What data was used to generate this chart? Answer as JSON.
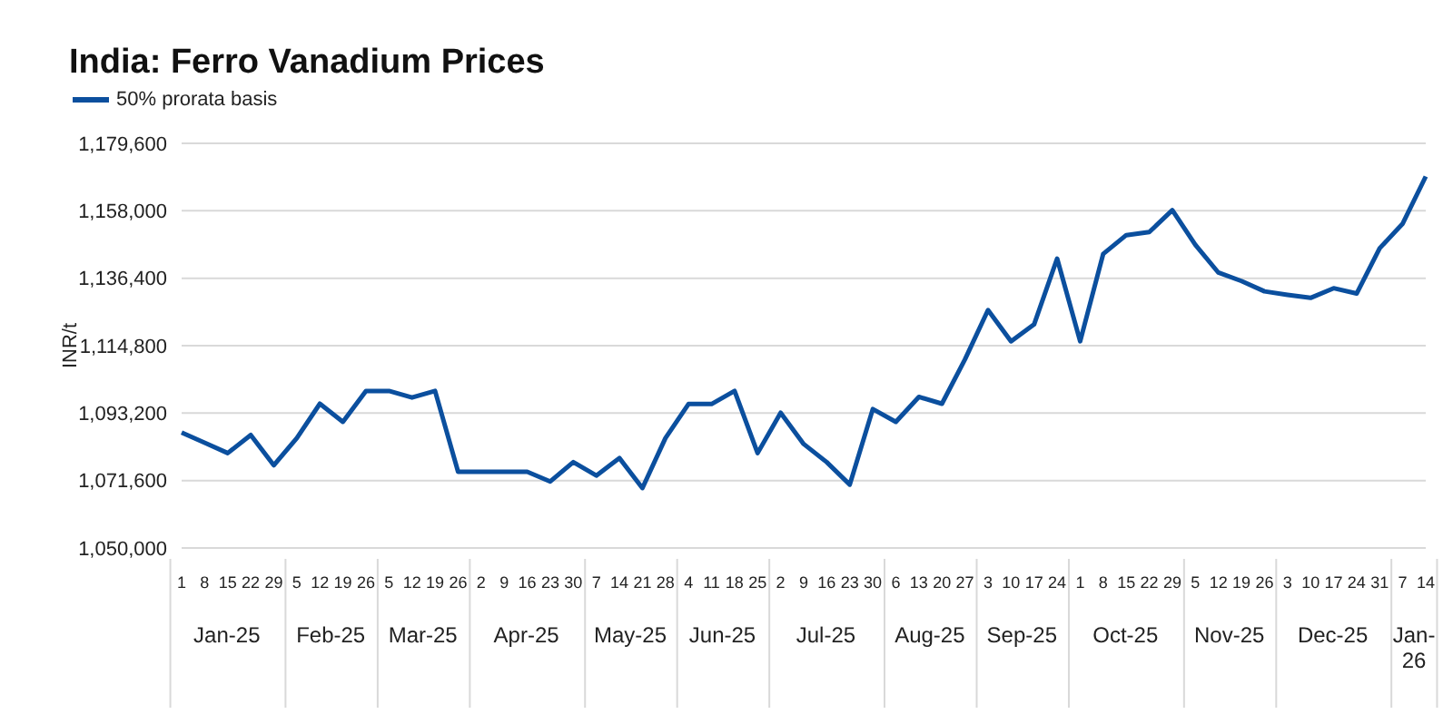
{
  "chart_data": {
    "type": "line",
    "title": "India: Ferro Vanadium Prices",
    "ylabel": "INR/t",
    "categories": [
      "1",
      "8",
      "15",
      "22",
      "29",
      "5",
      "12",
      "19",
      "26",
      "5",
      "12",
      "19",
      "26",
      "2",
      "9",
      "16",
      "23",
      "30",
      "7",
      "14",
      "21",
      "28",
      "4",
      "11",
      "18",
      "25",
      "2",
      "9",
      "16",
      "23",
      "30",
      "6",
      "13",
      "20",
      "27",
      "3",
      "10",
      "17",
      "24",
      "1",
      "8",
      "15",
      "22",
      "29",
      "5",
      "12",
      "19",
      "26",
      "3",
      "10",
      "17",
      "24",
      "31",
      "7",
      "14"
    ],
    "annotations": [
      "Jan-25",
      "Feb-25",
      "Mar-25",
      "Apr-25",
      "May-25",
      "Jun-25",
      "Jul-25",
      "Aug-25",
      "Sep-25",
      "Oct-25",
      "Nov-25",
      "Dec-25",
      "Jan-26"
    ],
    "series": [
      {
        "name": "50% prorata basis",
        "color": "#0b4f9e",
        "values": [
          1087000,
          1083700,
          1080400,
          1086200,
          1076500,
          1085200,
          1096200,
          1090400,
          1100300,
          1100300,
          1098200,
          1100300,
          1074400,
          1074400,
          1074400,
          1074400,
          1071300,
          1077500,
          1073200,
          1078800,
          1069200,
          1085200,
          1096100,
          1096100,
          1100300,
          1080400,
          1093300,
          1083300,
          1077500,
          1070300,
          1094500,
          1090400,
          1098400,
          1096200,
          1110400,
          1126200,
          1116200,
          1121600,
          1142700,
          1116200,
          1144200,
          1150200,
          1151200,
          1158200,
          1147100,
          1138200,
          1135500,
          1132200,
          1131100,
          1130100,
          1133200,
          1131500,
          1146000,
          1153900,
          1169000
        ]
      }
    ],
    "ylim": [
      1050000,
      1179600
    ],
    "yticks": [
      {
        "value": 1050000,
        "label": "1,050,000"
      },
      {
        "value": 1071600,
        "label": "1,071,600"
      },
      {
        "value": 1093200,
        "label": "1,093,200"
      },
      {
        "value": 1114800,
        "label": "1,114,800"
      },
      {
        "value": 1136400,
        "label": "1,136,400"
      },
      {
        "value": 1158000,
        "label": "1,158,000"
      },
      {
        "value": 1179600,
        "label": "1,179,600"
      }
    ],
    "grid": "y",
    "legend": "top left",
    "marker": "none",
    "line_style": "solid"
  }
}
